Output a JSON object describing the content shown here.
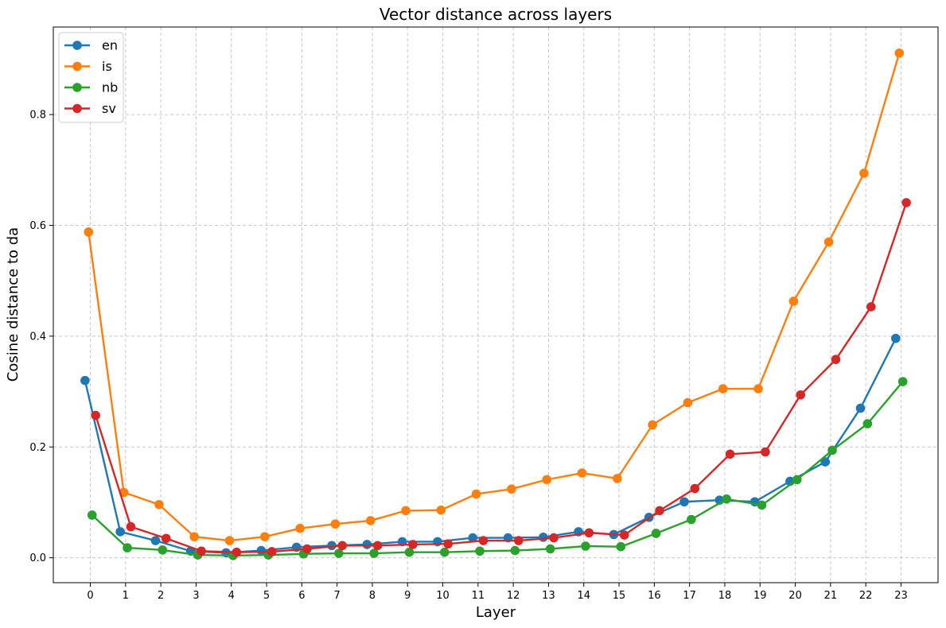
{
  "chart_data": {
    "type": "line",
    "title": "Vector distance across layers",
    "xlabel": "Layer",
    "ylabel": "Cosine distance to da",
    "x": [
      0,
      1,
      2,
      3,
      4,
      5,
      6,
      7,
      8,
      9,
      10,
      11,
      12,
      13,
      14,
      15,
      16,
      17,
      18,
      19,
      20,
      21,
      22,
      23
    ],
    "xticks": [
      "0",
      "1",
      "2",
      "3",
      "4",
      "5",
      "6",
      "7",
      "8",
      "9",
      "10",
      "11",
      "12",
      "13",
      "14",
      "15",
      "16",
      "17",
      "18",
      "19",
      "20",
      "21",
      "22",
      "23"
    ],
    "yticks": [
      "0.0",
      "0.2",
      "0.4",
      "0.6",
      "0.8"
    ],
    "xlim": [
      -1.05,
      24.05
    ],
    "ylim": [
      -0.045,
      0.958
    ],
    "grid": true,
    "legend_position": "top-left",
    "series": [
      {
        "name": "en",
        "color": "#1f77b4",
        "offset": -0.15,
        "values": [
          0.32,
          0.047,
          0.031,
          0.012,
          0.009,
          0.013,
          0.019,
          0.022,
          0.024,
          0.029,
          0.029,
          0.036,
          0.036,
          0.037,
          0.047,
          0.042,
          0.073,
          0.101,
          0.104,
          0.101,
          0.138,
          0.173,
          0.27,
          0.396
        ]
      },
      {
        "name": "is",
        "color": "#ff7f0e",
        "offset": -0.05,
        "values": [
          0.588,
          0.118,
          0.096,
          0.038,
          0.031,
          0.038,
          0.053,
          0.061,
          0.067,
          0.085,
          0.086,
          0.115,
          0.124,
          0.141,
          0.153,
          0.143,
          0.24,
          0.28,
          0.305,
          0.305,
          0.463,
          0.57,
          0.694,
          0.911
        ]
      },
      {
        "name": "nb",
        "color": "#2ca02c",
        "offset": 0.05,
        "values": [
          0.077,
          0.018,
          0.014,
          0.005,
          0.004,
          0.005,
          0.007,
          0.008,
          0.008,
          0.01,
          0.01,
          0.012,
          0.013,
          0.016,
          0.021,
          0.02,
          0.044,
          0.069,
          0.106,
          0.095,
          0.141,
          0.194,
          0.242,
          0.318
        ]
      },
      {
        "name": "sv",
        "color": "#d62728",
        "offset": 0.15,
        "values": [
          0.257,
          0.056,
          0.035,
          0.012,
          0.01,
          0.011,
          0.016,
          0.022,
          0.022,
          0.024,
          0.025,
          0.031,
          0.031,
          0.036,
          0.045,
          0.041,
          0.085,
          0.125,
          0.187,
          0.191,
          0.294,
          0.358,
          0.453,
          0.641
        ]
      }
    ]
  }
}
